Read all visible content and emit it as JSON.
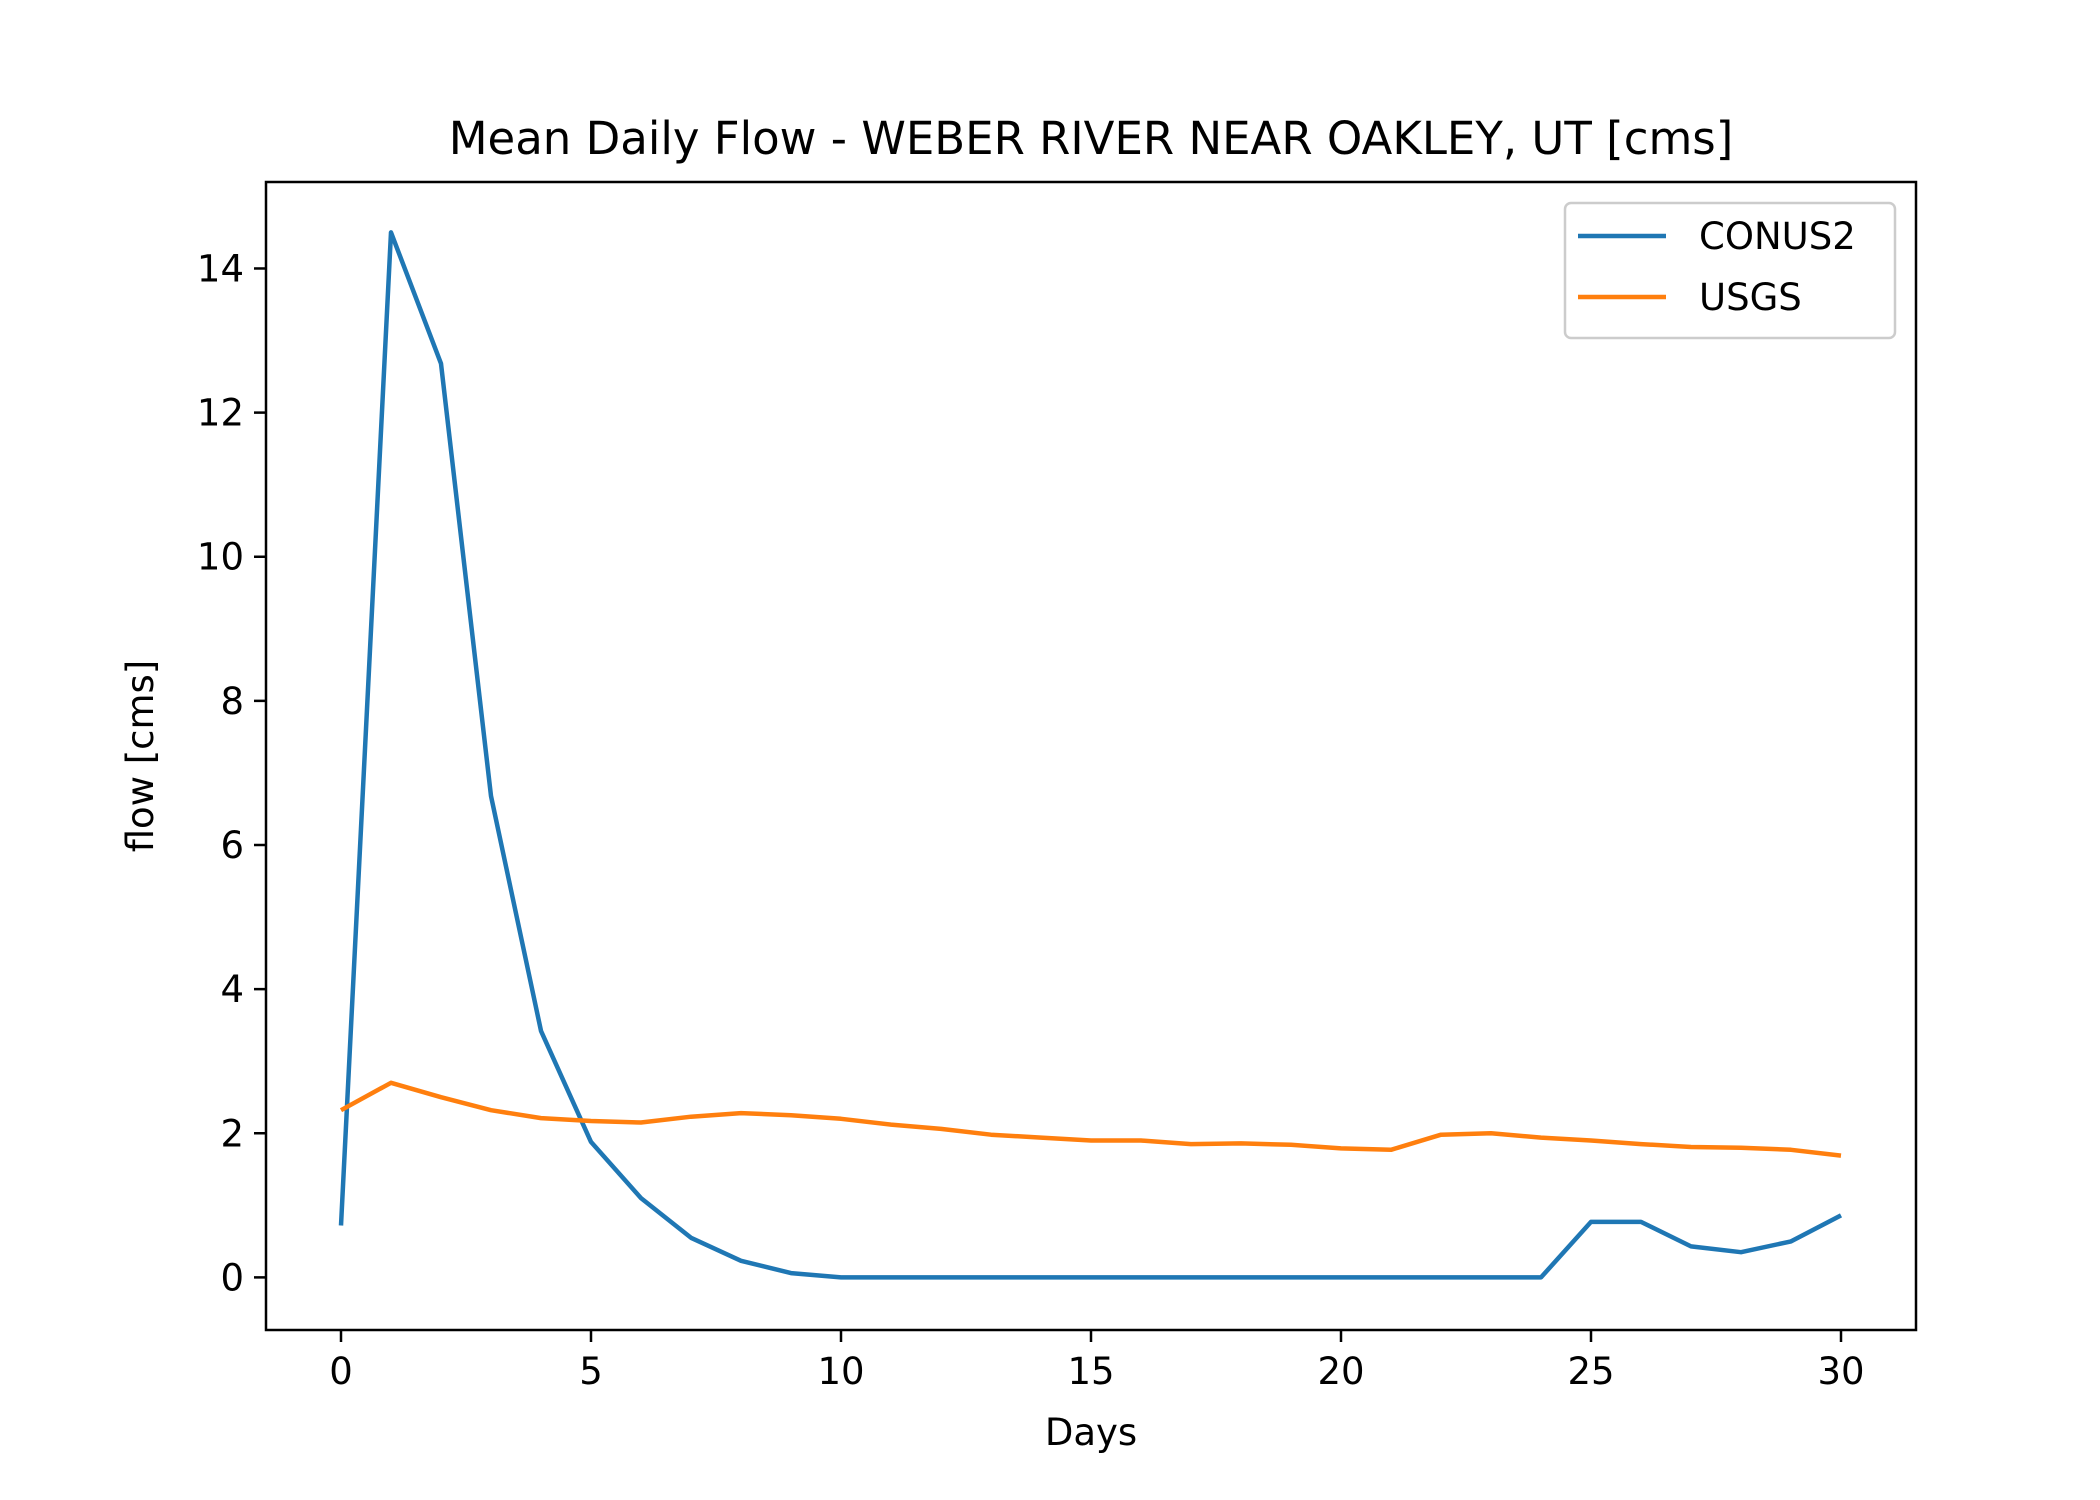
{
  "chart_data": {
    "type": "line",
    "title": "Mean Daily Flow - WEBER RIVER NEAR OAKLEY, UT [cms]",
    "xlabel": "Days",
    "ylabel": "flow [cms]",
    "xlim": [
      -1.5,
      31.5
    ],
    "ylim": [
      -0.73,
      15.2
    ],
    "xticks": [
      0,
      5,
      10,
      15,
      20,
      25,
      30
    ],
    "yticks": [
      0,
      2,
      4,
      6,
      8,
      10,
      12,
      14
    ],
    "grid": false,
    "legend_position": "top-right",
    "x": [
      0,
      1,
      2,
      3,
      4,
      5,
      6,
      7,
      8,
      9,
      10,
      11,
      12,
      13,
      14,
      15,
      16,
      17,
      18,
      19,
      20,
      21,
      22,
      23,
      24,
      25,
      26,
      27,
      28,
      29,
      30
    ],
    "series": [
      {
        "name": "CONUS2",
        "color": "#1f77b4",
        "values": [
          0.72,
          14.5,
          12.68,
          6.68,
          3.42,
          1.88,
          1.1,
          0.55,
          0.23,
          0.06,
          0.0,
          0.0,
          0.0,
          0.0,
          0.0,
          0.0,
          0.0,
          0.0,
          0.0,
          0.0,
          0.0,
          0.0,
          0.0,
          0.0,
          0.0,
          0.77,
          0.77,
          0.43,
          0.35,
          0.5,
          0.86
        ]
      },
      {
        "name": "USGS",
        "color": "#ff7f0e",
        "values": [
          2.32,
          2.7,
          2.5,
          2.32,
          2.21,
          2.17,
          2.15,
          2.23,
          2.28,
          2.25,
          2.2,
          2.12,
          2.06,
          1.98,
          1.94,
          1.9,
          1.9,
          1.85,
          1.86,
          1.84,
          1.79,
          1.77,
          1.98,
          2.0,
          1.94,
          1.9,
          1.85,
          1.81,
          1.8,
          1.77,
          1.69
        ]
      }
    ]
  }
}
